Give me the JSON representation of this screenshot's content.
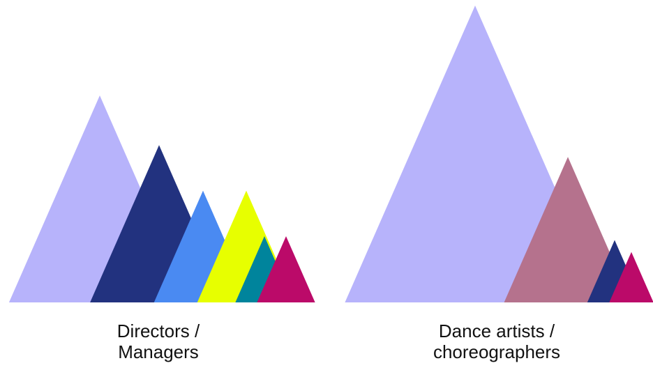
{
  "chart_data": [
    {
      "type": "area",
      "category": [
        "Directors /",
        "Managers"
      ],
      "series": [
        {
          "value": 100,
          "color": "#b7b3fb"
        },
        {
          "value": 76,
          "color": "#22327f"
        },
        {
          "value": 54,
          "color": "#4a8af2"
        },
        {
          "value": 54,
          "color": "#e7ff00"
        },
        {
          "value": 32,
          "color": "#00849c"
        },
        {
          "value": 32,
          "color": "#bb0a69"
        }
      ],
      "ylim": [
        0,
        100
      ]
    },
    {
      "type": "area",
      "category": [
        "Dance artists /",
        "choreographers"
      ],
      "series": [
        {
          "value": 100,
          "color": "#b7b3fb"
        },
        {
          "value": 49,
          "color": "#b5728d"
        },
        {
          "value": 21,
          "color": "#22327f"
        },
        {
          "value": 17,
          "color": "#bb0a69"
        }
      ],
      "ylim": [
        0,
        100
      ]
    }
  ]
}
